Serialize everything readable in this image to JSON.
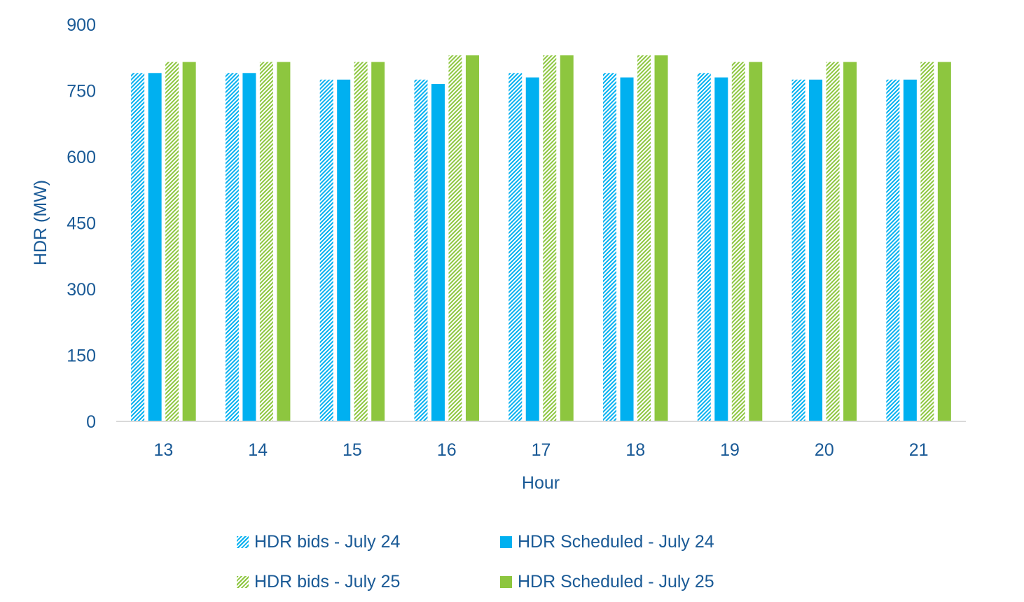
{
  "chart_data": {
    "type": "bar",
    "title": "",
    "xlabel": "Hour",
    "ylabel": "HDR (MW)",
    "ylim": [
      0,
      900
    ],
    "yticks": [
      0,
      150,
      300,
      450,
      600,
      750,
      900
    ],
    "categories": [
      "13",
      "14",
      "15",
      "16",
      "17",
      "18",
      "19",
      "20",
      "21"
    ],
    "series": [
      {
        "name": "HDR bids - July 24",
        "color": "#00b0f0",
        "pattern": "hatched",
        "values": [
          790,
          790,
          775,
          775,
          790,
          790,
          790,
          775,
          775
        ]
      },
      {
        "name": "HDR Scheduled - July 24",
        "color": "#00b0f0",
        "pattern": "solid",
        "values": [
          790,
          790,
          775,
          765,
          780,
          780,
          780,
          775,
          775
        ]
      },
      {
        "name": "HDR bids - July 25",
        "color": "#8dc63f",
        "pattern": "hatched",
        "values": [
          815,
          815,
          815,
          830,
          830,
          830,
          815,
          815,
          815
        ]
      },
      {
        "name": "HDR Scheduled - July 25",
        "color": "#8dc63f",
        "pattern": "solid",
        "values": [
          815,
          815,
          815,
          830,
          830,
          830,
          815,
          815,
          815
        ]
      }
    ],
    "grid": false,
    "legend_position": "bottom"
  },
  "colors": {
    "text": "#1a5a96",
    "axis": "#d9d9d9"
  }
}
